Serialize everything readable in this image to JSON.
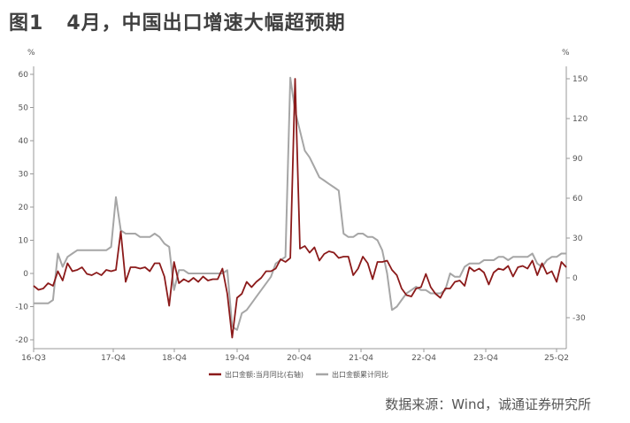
{
  "figure": {
    "number": "图1",
    "title": "4月，中国出口增速大幅超预期",
    "source": "数据来源：Wind，诚通证券研究所"
  },
  "chart_data": {
    "type": "line",
    "left_axis": {
      "unit": "%",
      "ylim": [
        -20,
        60
      ],
      "ticks": [
        -20,
        -10,
        0,
        10,
        20,
        30,
        40,
        50,
        60
      ]
    },
    "right_axis": {
      "unit": "%",
      "ylim": [
        -40,
        160
      ],
      "ticks": [
        -30,
        0,
        30,
        60,
        90,
        120,
        150
      ]
    },
    "x_ticks": [
      "16-Q3",
      "17-Q4",
      "18-Q4",
      "19-Q4",
      "20-Q4",
      "21-Q4",
      "22-Q4",
      "23-Q4",
      "25-Q2"
    ],
    "grid": false,
    "legend_position": "bottom",
    "series": [
      {
        "name": "出口金额:当月同比(右轴)",
        "axis": "right",
        "color": "#8b1a1a",
        "values": [
          -6,
          -9,
          -8,
          -4,
          -6,
          5,
          -2,
          11,
          5,
          6,
          8,
          3,
          2,
          4,
          2,
          6,
          5,
          6,
          35,
          -3,
          8,
          8,
          7,
          8,
          5,
          11,
          11,
          1,
          -21,
          12,
          -4,
          -1,
          -3,
          0,
          -3,
          1,
          -2,
          -1,
          -1,
          7,
          -12,
          -45,
          -15,
          -12,
          -3,
          -7,
          -3,
          0,
          5,
          5,
          7,
          14,
          12,
          15,
          150,
          22,
          24,
          19,
          23,
          13,
          18,
          20,
          19,
          15,
          16,
          16,
          2,
          7,
          16,
          11,
          -1,
          12,
          12,
          13,
          6,
          2,
          -8,
          -13,
          -14,
          -8,
          -7,
          3,
          -7,
          -12,
          -15,
          -8,
          -8,
          -3,
          -2,
          -6,
          8,
          5,
          7,
          4,
          -5,
          4,
          7,
          6,
          9,
          1,
          8,
          9,
          7,
          13,
          2,
          11,
          3,
          5,
          -3,
          12,
          8
        ]
      },
      {
        "name": "出口金额累计同比",
        "axis": "left",
        "color": "#a6a6a6",
        "values": [
          -9,
          -9,
          -9,
          -9,
          -8,
          6,
          2,
          5,
          6,
          7,
          7,
          7,
          7,
          7,
          7,
          7,
          8,
          23,
          13,
          12,
          12,
          12,
          11,
          11,
          11,
          12,
          11,
          9,
          8,
          -5,
          1,
          1,
          0,
          0,
          0,
          0,
          0,
          0,
          0,
          0,
          1,
          -16,
          -17,
          -12,
          -11,
          -9,
          -7,
          -5,
          -3,
          -1,
          3,
          4,
          5,
          59,
          49,
          43,
          37,
          35,
          32,
          29,
          28,
          27,
          26,
          25,
          12,
          11,
          11,
          12,
          12,
          11,
          11,
          10,
          7,
          0,
          -11,
          -10,
          -8,
          -6,
          -5,
          -4,
          -5,
          -5,
          -6,
          -6,
          -6,
          -5,
          0,
          -1,
          -1,
          2,
          3,
          3,
          3,
          4,
          4,
          4,
          5,
          5,
          4,
          5,
          5,
          5,
          5,
          6,
          3,
          2,
          4,
          5,
          5,
          6,
          6
        ]
      }
    ]
  }
}
